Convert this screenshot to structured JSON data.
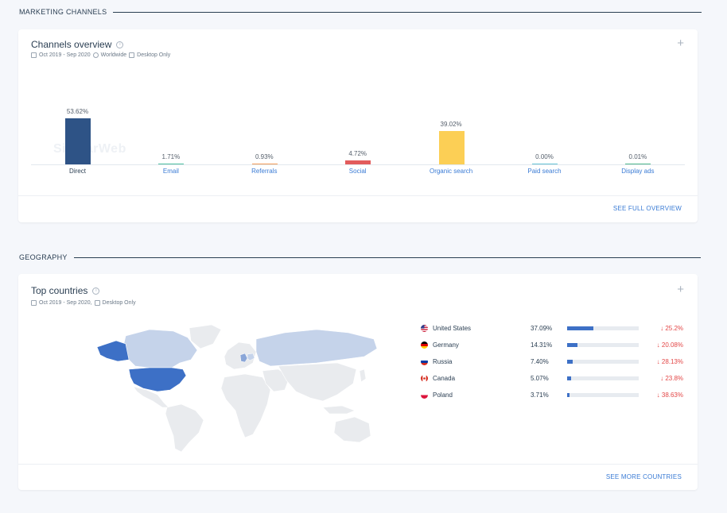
{
  "marketing": {
    "section_title": "MARKETING CHANNELS",
    "card_title": "Channels overview",
    "info_icon": "info-icon",
    "add_icon": "plus-icon",
    "date_range": "Oct 2019 - Sep 2020",
    "region": "Worldwide",
    "device": "Desktop Only",
    "watermark": "SimilarWeb",
    "see_full_overview": "SEE FULL OVERVIEW",
    "channels": [
      {
        "label": "Direct",
        "value_text": "53.62%",
        "value": 53.62,
        "color": "#2e5386",
        "link": false
      },
      {
        "label": "Email",
        "value_text": "1.71%",
        "value": 1.71,
        "color": "#4cbf9f",
        "link": true
      },
      {
        "label": "Referrals",
        "value_text": "0.93%",
        "value": 0.93,
        "color": "#f29a55",
        "link": true
      },
      {
        "label": "Social",
        "value_text": "4.72%",
        "value": 4.72,
        "color": "#e25c5c",
        "link": true
      },
      {
        "label": "Organic search",
        "value_text": "39.02%",
        "value": 39.02,
        "color": "#fccf55",
        "link": true
      },
      {
        "label": "Paid search",
        "value_text": "0.00%",
        "value": 0.0,
        "color": "#66c3d6",
        "link": true
      },
      {
        "label": "Display ads",
        "value_text": "0.01%",
        "value": 0.01,
        "color": "#4fb88c",
        "link": true
      }
    ]
  },
  "geography": {
    "section_title": "GEOGRAPHY",
    "card_title": "Top countries",
    "date_range": "Oct 2019 - Sep 2020,",
    "device": "Desktop Only",
    "see_more_countries": "SEE MORE COUNTRIES",
    "countries": [
      {
        "name": "United States",
        "share_text": "37.09%",
        "share": 37.09,
        "change": "↓ 25.2%",
        "flag": "us-flag"
      },
      {
        "name": "Germany",
        "share_text": "14.31%",
        "share": 14.31,
        "change": "↓ 20.08%",
        "flag": "de-flag"
      },
      {
        "name": "Russia",
        "share_text": "7.40%",
        "share": 7.4,
        "change": "↓ 28.13%",
        "flag": "ru-flag"
      },
      {
        "name": "Canada",
        "share_text": "5.07%",
        "share": 5.07,
        "change": "↓ 23.8%",
        "flag": "ca-flag"
      },
      {
        "name": "Poland",
        "share_text": "3.71%",
        "share": 3.71,
        "change": "↓ 38.63%",
        "flag": "pl-flag"
      }
    ]
  },
  "colors": {
    "accent": "#3a7bd5",
    "decline": "#e34747",
    "map_highlight": "#3d70c6",
    "map_light": "#c5d3ea",
    "map_base": "#e9ebee"
  }
}
